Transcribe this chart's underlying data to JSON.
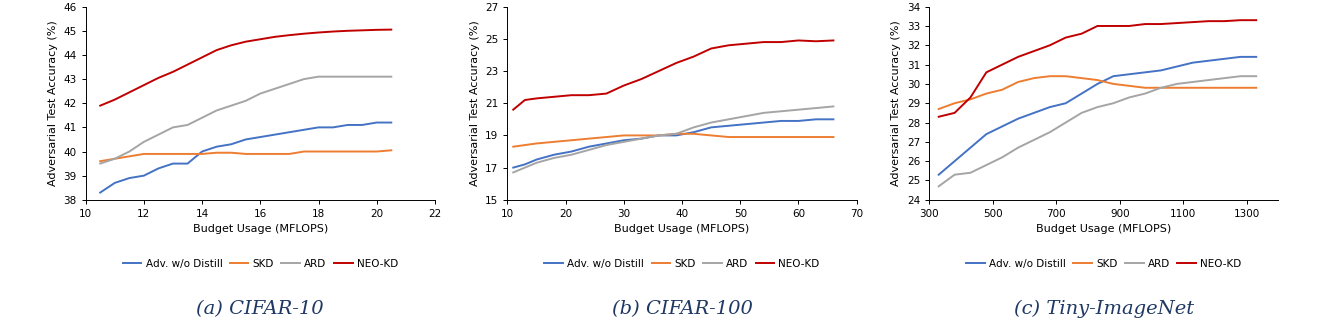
{
  "colors": {
    "adv": "#4472C4",
    "skd": "#ED7D31",
    "ard": "#A5A5A5",
    "neo": "#C00000"
  },
  "line_width": 1.4,
  "cifar10": {
    "title": "(a) CIFAR-10",
    "xlabel": "Budget Usage (MFLOPS)",
    "ylabel": "Adversarial Test Accuracy (%)",
    "xlim": [
      10,
      22
    ],
    "ylim": [
      38,
      46
    ],
    "xticks": [
      10,
      12,
      14,
      16,
      18,
      20,
      22
    ],
    "yticks": [
      38,
      39,
      40,
      41,
      42,
      43,
      44,
      45,
      46
    ],
    "adv_x": [
      10.5,
      11.0,
      11.5,
      12.0,
      12.5,
      13.0,
      13.5,
      14.0,
      14.5,
      15.0,
      15.5,
      16.0,
      16.5,
      17.0,
      17.5,
      18.0,
      18.5,
      19.0,
      19.5,
      20.0,
      20.5
    ],
    "adv_y": [
      38.3,
      38.7,
      38.9,
      39.0,
      39.3,
      39.5,
      39.5,
      40.0,
      40.2,
      40.3,
      40.5,
      40.6,
      40.7,
      40.8,
      40.9,
      41.0,
      41.0,
      41.1,
      41.1,
      41.2,
      41.2
    ],
    "skd_x": [
      10.5,
      11.0,
      11.5,
      12.0,
      12.5,
      13.0,
      13.5,
      14.0,
      14.5,
      15.0,
      15.5,
      16.0,
      16.5,
      17.0,
      17.5,
      18.0,
      18.5,
      19.0,
      19.5,
      20.0,
      20.5
    ],
    "skd_y": [
      39.6,
      39.7,
      39.8,
      39.9,
      39.9,
      39.9,
      39.9,
      39.9,
      39.95,
      39.95,
      39.9,
      39.9,
      39.9,
      39.9,
      40.0,
      40.0,
      40.0,
      40.0,
      40.0,
      40.0,
      40.05
    ],
    "ard_x": [
      10.5,
      11.0,
      11.5,
      12.0,
      12.5,
      13.0,
      13.5,
      14.0,
      14.5,
      15.0,
      15.5,
      16.0,
      16.5,
      17.0,
      17.5,
      18.0,
      18.5,
      19.0,
      19.5,
      20.0,
      20.5
    ],
    "ard_y": [
      39.5,
      39.7,
      40.0,
      40.4,
      40.7,
      41.0,
      41.1,
      41.4,
      41.7,
      41.9,
      42.1,
      42.4,
      42.6,
      42.8,
      43.0,
      43.1,
      43.1,
      43.1,
      43.1,
      43.1,
      43.1
    ],
    "neo_x": [
      10.5,
      11.0,
      11.5,
      12.0,
      12.5,
      13.0,
      13.5,
      14.0,
      14.5,
      15.0,
      15.5,
      16.0,
      16.5,
      17.0,
      17.5,
      18.0,
      18.5,
      19.0,
      19.5,
      20.0,
      20.5
    ],
    "neo_y": [
      41.9,
      42.15,
      42.45,
      42.75,
      43.05,
      43.3,
      43.6,
      43.9,
      44.2,
      44.4,
      44.55,
      44.65,
      44.75,
      44.82,
      44.88,
      44.93,
      44.97,
      45.0,
      45.02,
      45.04,
      45.05
    ]
  },
  "cifar100": {
    "title": "(b) CIFAR-100",
    "xlabel": "Budget Usage (MFLOPS)",
    "ylabel": "Adversarial Test Accuracy (%)",
    "xlim": [
      10,
      70
    ],
    "ylim": [
      15,
      27
    ],
    "xticks": [
      10,
      20,
      30,
      40,
      50,
      60,
      70
    ],
    "yticks": [
      15,
      17,
      19,
      21,
      23,
      25,
      27
    ],
    "adv_x": [
      11,
      13,
      15,
      18,
      21,
      24,
      27,
      30,
      33,
      36,
      39,
      42,
      45,
      48,
      51,
      54,
      57,
      60,
      63,
      66
    ],
    "adv_y": [
      17.0,
      17.2,
      17.5,
      17.8,
      18.0,
      18.3,
      18.5,
      18.7,
      18.8,
      19.0,
      19.0,
      19.2,
      19.5,
      19.6,
      19.7,
      19.8,
      19.9,
      19.9,
      20.0,
      20.0
    ],
    "skd_x": [
      11,
      13,
      15,
      18,
      21,
      24,
      27,
      30,
      33,
      36,
      39,
      42,
      45,
      48,
      51,
      54,
      57,
      60,
      63,
      66
    ],
    "skd_y": [
      18.3,
      18.4,
      18.5,
      18.6,
      18.7,
      18.8,
      18.9,
      19.0,
      19.0,
      19.0,
      19.1,
      19.1,
      19.0,
      18.9,
      18.9,
      18.9,
      18.9,
      18.9,
      18.9,
      18.9
    ],
    "ard_x": [
      11,
      13,
      15,
      18,
      21,
      24,
      27,
      30,
      33,
      36,
      39,
      42,
      45,
      48,
      51,
      54,
      57,
      60,
      63,
      66
    ],
    "ard_y": [
      16.7,
      17.0,
      17.3,
      17.6,
      17.8,
      18.1,
      18.4,
      18.6,
      18.8,
      19.0,
      19.1,
      19.5,
      19.8,
      20.0,
      20.2,
      20.4,
      20.5,
      20.6,
      20.7,
      20.8
    ],
    "neo_x": [
      11,
      13,
      15,
      18,
      21,
      24,
      27,
      30,
      33,
      36,
      39,
      42,
      45,
      48,
      51,
      54,
      57,
      60,
      63,
      66
    ],
    "neo_y": [
      20.6,
      21.2,
      21.3,
      21.4,
      21.5,
      21.5,
      21.6,
      22.1,
      22.5,
      23.0,
      23.5,
      23.9,
      24.4,
      24.6,
      24.7,
      24.8,
      24.8,
      24.9,
      24.85,
      24.9
    ]
  },
  "tiny": {
    "title": "(c) Tiny-ImageNet",
    "xlabel": "Budget Usage (MFLOPS)",
    "ylabel": "Adversarial Test Accuracy (%)",
    "xlim": [
      300,
      1400
    ],
    "ylim": [
      24,
      34
    ],
    "xticks": [
      300,
      500,
      700,
      900,
      1100,
      1300
    ],
    "yticks": [
      24,
      25,
      26,
      27,
      28,
      29,
      30,
      31,
      32,
      33,
      34
    ],
    "adv_x": [
      330,
      380,
      430,
      480,
      530,
      580,
      630,
      680,
      730,
      780,
      830,
      880,
      930,
      980,
      1030,
      1080,
      1130,
      1180,
      1230,
      1280,
      1330
    ],
    "adv_y": [
      25.3,
      26.0,
      26.7,
      27.4,
      27.8,
      28.2,
      28.5,
      28.8,
      29.0,
      29.5,
      30.0,
      30.4,
      30.5,
      30.6,
      30.7,
      30.9,
      31.1,
      31.2,
      31.3,
      31.4,
      31.4
    ],
    "skd_x": [
      330,
      380,
      430,
      480,
      530,
      580,
      630,
      680,
      730,
      780,
      830,
      880,
      930,
      980,
      1030,
      1080,
      1130,
      1180,
      1230,
      1280,
      1330
    ],
    "skd_y": [
      28.7,
      29.0,
      29.2,
      29.5,
      29.7,
      30.1,
      30.3,
      30.4,
      30.4,
      30.3,
      30.2,
      30.0,
      29.9,
      29.8,
      29.8,
      29.8,
      29.8,
      29.8,
      29.8,
      29.8,
      29.8
    ],
    "ard_x": [
      330,
      380,
      430,
      480,
      530,
      580,
      630,
      680,
      730,
      780,
      830,
      880,
      930,
      980,
      1030,
      1080,
      1130,
      1180,
      1230,
      1280,
      1330
    ],
    "ard_y": [
      24.7,
      25.3,
      25.4,
      25.8,
      26.2,
      26.7,
      27.1,
      27.5,
      28.0,
      28.5,
      28.8,
      29.0,
      29.3,
      29.5,
      29.8,
      30.0,
      30.1,
      30.2,
      30.3,
      30.4,
      30.4
    ],
    "neo_x": [
      330,
      380,
      430,
      480,
      530,
      580,
      630,
      680,
      730,
      780,
      830,
      880,
      930,
      980,
      1030,
      1080,
      1130,
      1180,
      1230,
      1280,
      1330
    ],
    "neo_y": [
      28.3,
      28.5,
      29.3,
      30.6,
      31.0,
      31.4,
      31.7,
      32.0,
      32.4,
      32.6,
      33.0,
      33.0,
      33.0,
      33.1,
      33.1,
      33.15,
      33.2,
      33.25,
      33.25,
      33.3,
      33.3
    ]
  },
  "legend": {
    "adv_label": "Adv. w/o Distill",
    "skd_label": "SKD",
    "ard_label": "ARD",
    "neo_label": "NEO-KD"
  },
  "subtitle_fontsize": 14,
  "subtitle_color": "#1F3864",
  "tick_fontsize": 7.5,
  "label_fontsize": 8,
  "legend_fontsize": 7.5
}
